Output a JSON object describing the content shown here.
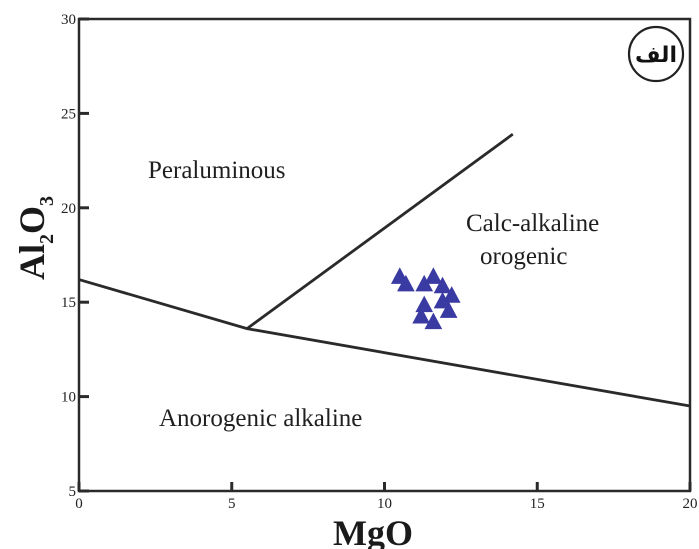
{
  "chart_data": {
    "type": "scatter",
    "title": "",
    "xlabel": "MgO",
    "ylabel_main": "Al",
    "ylabel_sub1": "2",
    "ylabel_mid": "O",
    "ylabel_sub2": "3",
    "xlim": [
      0,
      20
    ],
    "ylim": [
      5,
      30
    ],
    "x_ticks": [
      "0",
      "5",
      "10",
      "15",
      "20"
    ],
    "y_ticks": [
      "5",
      "10",
      "15",
      "20",
      "25",
      "30"
    ],
    "grid": false,
    "marker": "triangle",
    "marker_color": "#3a3aa3",
    "line_color": "#2a2a2a",
    "badge": "الف",
    "regions": {
      "peraluminous": "Peraluminous",
      "calc_alkaline_1": "Calc-alkaline",
      "calc_alkaline_2": "orogenic",
      "anorogenic": "Anorogenic alkaline"
    },
    "boundaries": [
      {
        "name": "lower-boundary",
        "points": [
          [
            0,
            16.2
          ],
          [
            5.5,
            13.6
          ],
          [
            20,
            9.5
          ]
        ]
      },
      {
        "name": "upper-boundary",
        "points": [
          [
            5.5,
            13.6
          ],
          [
            14.2,
            23.9
          ]
        ]
      }
    ],
    "series": [
      {
        "points": [
          [
            10.5,
            16.3
          ],
          [
            10.7,
            15.9
          ],
          [
            11.3,
            15.9
          ],
          [
            11.6,
            16.3
          ],
          [
            11.9,
            15.8
          ],
          [
            12.2,
            15.3
          ],
          [
            11.3,
            14.8
          ],
          [
            11.9,
            15.0
          ],
          [
            12.1,
            14.5
          ],
          [
            11.2,
            14.2
          ],
          [
            11.6,
            13.9
          ]
        ]
      }
    ]
  }
}
